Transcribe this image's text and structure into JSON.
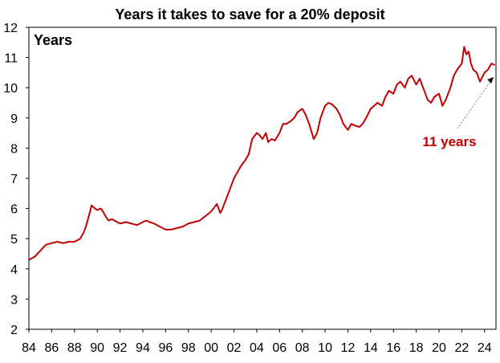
{
  "chart_data": {
    "type": "line",
    "title": "Years it takes to save for a 20% deposit",
    "ylabel": "Years",
    "xlabel": "",
    "ylim": [
      2,
      12
    ],
    "xlim": [
      1984,
      2025
    ],
    "yticks": [
      2,
      3,
      4,
      5,
      6,
      7,
      8,
      9,
      10,
      11,
      12
    ],
    "xticks": [
      1984,
      1986,
      1988,
      1990,
      1992,
      1994,
      1996,
      1998,
      2000,
      2002,
      2004,
      2006,
      2008,
      2010,
      2012,
      2014,
      2016,
      2018,
      2020,
      2022,
      2024
    ],
    "xtick_labels": [
      "84",
      "86",
      "88",
      "90",
      "92",
      "94",
      "96",
      "98",
      "00",
      "02",
      "04",
      "06",
      "08",
      "10",
      "12",
      "14",
      "16",
      "18",
      "20",
      "22",
      "24"
    ],
    "grid": false,
    "line_color": "#c00000",
    "annotation": {
      "text": "11 years",
      "x": 2024.8,
      "y": 10.35,
      "color": "#c00000"
    },
    "series": [
      {
        "x": [
          1984.0,
          1984.5,
          1985.0,
          1985.5,
          1986.0,
          1986.5,
          1987.0,
          1987.5,
          1988.0,
          1988.5,
          1988.8,
          1989.0,
          1989.3,
          1989.5,
          1989.8,
          1990.0,
          1990.3,
          1990.5,
          1990.8,
          1991.0,
          1991.3,
          1991.5,
          1992.0,
          1992.5,
          1993.0,
          1993.5,
          1994.0,
          1994.3,
          1994.6,
          1995.0,
          1995.5,
          1996.0,
          1996.5,
          1997.0,
          1997.5,
          1998.0,
          1998.5,
          1999.0,
          1999.5,
          2000.0,
          2000.3,
          2000.5,
          2000.8,
          2001.0,
          2001.3,
          2001.7,
          2002.0,
          2002.3,
          2002.6,
          2003.0,
          2003.3,
          2003.6,
          2004.0,
          2004.2,
          2004.5,
          2004.8,
          2005.0,
          2005.3,
          2005.6,
          2006.0,
          2006.3,
          2006.6,
          2007.0,
          2007.3,
          2007.6,
          2008.0,
          2008.3,
          2008.6,
          2009.0,
          2009.3,
          2009.6,
          2010.0,
          2010.3,
          2010.6,
          2011.0,
          2011.3,
          2011.6,
          2012.0,
          2012.3,
          2012.6,
          2013.0,
          2013.3,
          2013.6,
          2014.0,
          2014.3,
          2014.6,
          2015.0,
          2015.3,
          2015.6,
          2016.0,
          2016.3,
          2016.6,
          2017.0,
          2017.3,
          2017.6,
          2018.0,
          2018.3,
          2018.6,
          2019.0,
          2019.3,
          2019.6,
          2020.0,
          2020.3,
          2020.6,
          2021.0,
          2021.3,
          2021.6,
          2022.0,
          2022.2,
          2022.4,
          2022.6,
          2022.8,
          2023.0,
          2023.3,
          2023.6,
          2024.0,
          2024.3,
          2024.6,
          2024.9
        ],
        "values": [
          4.3,
          4.4,
          4.6,
          4.8,
          4.85,
          4.9,
          4.85,
          4.9,
          4.9,
          5.0,
          5.2,
          5.4,
          5.8,
          6.1,
          6.0,
          5.95,
          6.0,
          5.9,
          5.7,
          5.6,
          5.65,
          5.6,
          5.5,
          5.55,
          5.5,
          5.45,
          5.55,
          5.6,
          5.55,
          5.5,
          5.4,
          5.3,
          5.3,
          5.35,
          5.4,
          5.5,
          5.55,
          5.6,
          5.75,
          5.9,
          6.05,
          6.15,
          5.85,
          6.0,
          6.3,
          6.7,
          7.0,
          7.2,
          7.4,
          7.6,
          7.8,
          8.3,
          8.5,
          8.45,
          8.3,
          8.5,
          8.2,
          8.3,
          8.25,
          8.5,
          8.8,
          8.8,
          8.9,
          9.0,
          9.2,
          9.3,
          9.1,
          8.8,
          8.3,
          8.5,
          9.0,
          9.4,
          9.5,
          9.45,
          9.3,
          9.1,
          8.8,
          8.6,
          8.8,
          8.75,
          8.7,
          8.8,
          9.0,
          9.3,
          9.4,
          9.5,
          9.4,
          9.7,
          9.9,
          9.8,
          10.1,
          10.2,
          10.0,
          10.3,
          10.4,
          10.1,
          10.3,
          10.0,
          9.6,
          9.5,
          9.7,
          9.8,
          9.4,
          9.6,
          10.0,
          10.4,
          10.6,
          10.8,
          11.35,
          11.1,
          11.2,
          10.8,
          10.6,
          10.5,
          10.2,
          10.5,
          10.6,
          10.8,
          10.75
        ]
      }
    ]
  }
}
